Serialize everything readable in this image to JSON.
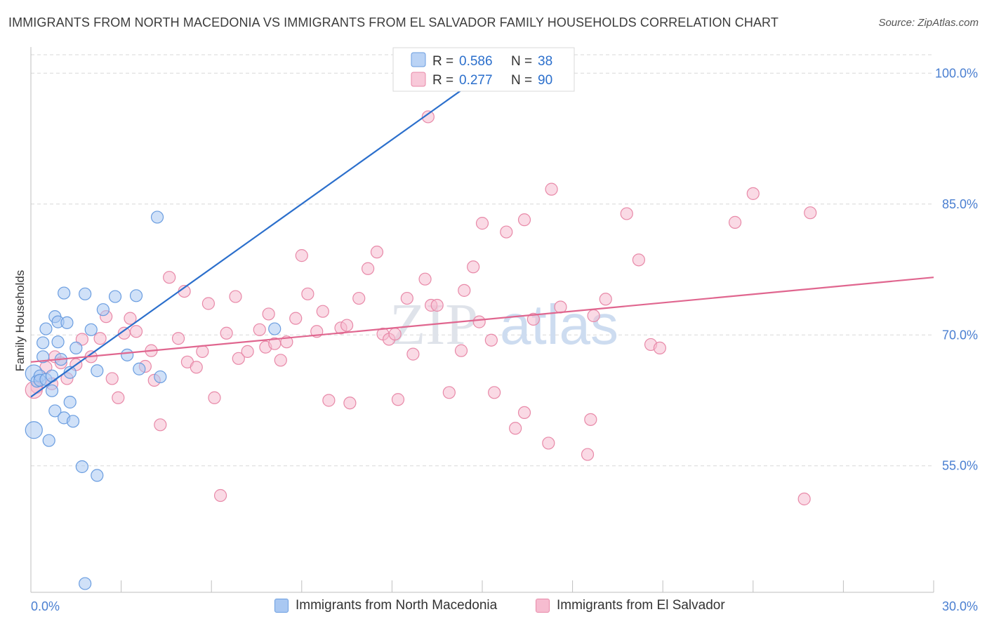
{
  "header": {
    "title": "IMMIGRANTS FROM NORTH MACEDONIA VS IMMIGRANTS FROM EL SALVADOR FAMILY HOUSEHOLDS CORRELATION CHART",
    "source": "Source: ZipAtlas.com"
  },
  "watermark": {
    "zip": "ZIP",
    "atlas": "atlas"
  },
  "stats_box": {
    "rows": [
      {
        "r_label": "R = ",
        "r_value": "0.586",
        "n_label": "N = ",
        "n_value": "38"
      },
      {
        "r_label": "R = ",
        "r_value": "0.277",
        "n_label": "N = ",
        "n_value": "90"
      }
    ]
  },
  "legend": {
    "items": [
      {
        "label": "Immigrants from North Macedonia"
      },
      {
        "label": "Immigrants from El Salvador"
      }
    ]
  },
  "colors": {
    "blue_fill": "#a9c8f2",
    "blue_stroke": "#6a9de0",
    "blue_line": "#2b6fcc",
    "pink_fill": "#f6bcd0",
    "pink_stroke": "#e889a8",
    "pink_line": "#e0668f",
    "axis_text": "#4a7fd1",
    "grid": "#d8d8d8"
  },
  "chart_data": {
    "type": "scatter",
    "title": "IMMIGRANTS FROM NORTH MACEDONIA VS IMMIGRANTS FROM EL SALVADOR FAMILY HOUSEHOLDS CORRELATION CHART",
    "xlabel": "",
    "ylabel": "Family Households",
    "xlim": [
      0,
      30
    ],
    "ylim": [
      40.5,
      103
    ],
    "x_tick_labels": [
      "0.0%",
      "30.0%"
    ],
    "y_ticks": [
      55,
      70,
      85,
      100
    ],
    "y_tick_labels": [
      "55.0%",
      "70.0%",
      "85.0%",
      "100.0%"
    ],
    "grid": true,
    "legend_position": "bottom",
    "series": [
      {
        "name": "Immigrants from North Macedonia",
        "r": 0.586,
        "n": 38,
        "trend": {
          "x": [
            0.0,
            15.1
          ],
          "y": [
            62.9,
            100.0
          ]
        },
        "points": [
          [
            0.1,
            59.1
          ],
          [
            0.1,
            65.6
          ],
          [
            0.2,
            64.7
          ],
          [
            0.3,
            65.3
          ],
          [
            0.3,
            64.8
          ],
          [
            0.4,
            69.1
          ],
          [
            0.4,
            67.5
          ],
          [
            0.5,
            64.9
          ],
          [
            0.5,
            70.7
          ],
          [
            0.6,
            57.9
          ],
          [
            0.7,
            63.6
          ],
          [
            0.7,
            65.3
          ],
          [
            0.8,
            61.3
          ],
          [
            0.8,
            72.1
          ],
          [
            0.9,
            69.2
          ],
          [
            0.9,
            71.5
          ],
          [
            1.0,
            67.2
          ],
          [
            1.1,
            74.8
          ],
          [
            1.1,
            60.5
          ],
          [
            1.2,
            71.4
          ],
          [
            1.3,
            65.7
          ],
          [
            1.3,
            62.3
          ],
          [
            1.4,
            60.1
          ],
          [
            1.5,
            68.5
          ],
          [
            1.7,
            54.9
          ],
          [
            1.8,
            74.7
          ],
          [
            1.8,
            41.5
          ],
          [
            2.0,
            70.6
          ],
          [
            2.2,
            65.9
          ],
          [
            2.2,
            53.9
          ],
          [
            2.4,
            72.9
          ],
          [
            2.8,
            74.4
          ],
          [
            3.2,
            67.7
          ],
          [
            3.5,
            74.5
          ],
          [
            3.6,
            66.1
          ],
          [
            4.2,
            83.5
          ],
          [
            4.3,
            65.2
          ],
          [
            8.1,
            70.7
          ]
        ]
      },
      {
        "name": "Immigrants from El Salvador",
        "r": 0.277,
        "n": 90,
        "trend": {
          "x": [
            0.0,
            30.0
          ],
          "y": [
            66.9,
            76.6
          ]
        },
        "points": [
          [
            0.2,
            64.0
          ],
          [
            0.5,
            66.3
          ],
          [
            0.7,
            64.4
          ],
          [
            0.8,
            67.5
          ],
          [
            1.0,
            66.8
          ],
          [
            1.2,
            65.0
          ],
          [
            1.5,
            66.6
          ],
          [
            1.7,
            69.5
          ],
          [
            2.0,
            67.5
          ],
          [
            2.3,
            69.6
          ],
          [
            2.5,
            72.1
          ],
          [
            2.7,
            65.0
          ],
          [
            2.9,
            62.8
          ],
          [
            3.1,
            70.2
          ],
          [
            3.3,
            71.9
          ],
          [
            3.5,
            70.4
          ],
          [
            3.8,
            66.4
          ],
          [
            4.0,
            68.2
          ],
          [
            4.1,
            64.8
          ],
          [
            4.3,
            59.7
          ],
          [
            4.6,
            76.6
          ],
          [
            4.9,
            69.6
          ],
          [
            5.1,
            75.0
          ],
          [
            5.2,
            66.9
          ],
          [
            5.5,
            66.3
          ],
          [
            5.7,
            68.1
          ],
          [
            5.9,
            73.6
          ],
          [
            6.1,
            62.8
          ],
          [
            6.3,
            51.6
          ],
          [
            6.5,
            70.2
          ],
          [
            6.8,
            74.4
          ],
          [
            6.9,
            67.3
          ],
          [
            7.2,
            68.1
          ],
          [
            7.6,
            70.6
          ],
          [
            7.8,
            68.6
          ],
          [
            7.9,
            72.4
          ],
          [
            8.1,
            69.0
          ],
          [
            8.3,
            67.1
          ],
          [
            8.5,
            69.2
          ],
          [
            8.8,
            71.9
          ],
          [
            9.0,
            79.1
          ],
          [
            9.2,
            74.7
          ],
          [
            9.5,
            70.4
          ],
          [
            9.7,
            72.7
          ],
          [
            9.9,
            62.5
          ],
          [
            10.3,
            70.8
          ],
          [
            10.5,
            71.1
          ],
          [
            10.6,
            62.2
          ],
          [
            10.9,
            74.2
          ],
          [
            11.2,
            77.6
          ],
          [
            11.5,
            79.5
          ],
          [
            11.7,
            70.1
          ],
          [
            11.9,
            69.5
          ],
          [
            12.1,
            70.1
          ],
          [
            12.2,
            62.6
          ],
          [
            12.5,
            74.2
          ],
          [
            12.7,
            67.8
          ],
          [
            13.1,
            76.4
          ],
          [
            13.3,
            73.4
          ],
          [
            13.5,
            73.4
          ],
          [
            13.2,
            95.0
          ],
          [
            13.9,
            63.4
          ],
          [
            14.3,
            68.2
          ],
          [
            14.4,
            75.1
          ],
          [
            14.7,
            77.8
          ],
          [
            14.9,
            71.5
          ],
          [
            15.0,
            82.8
          ],
          [
            15.3,
            69.4
          ],
          [
            15.4,
            63.4
          ],
          [
            15.8,
            81.8
          ],
          [
            16.1,
            59.3
          ],
          [
            16.7,
            71.8
          ],
          [
            16.4,
            83.2
          ],
          [
            16.4,
            61.1
          ],
          [
            17.2,
            57.6
          ],
          [
            17.3,
            86.7
          ],
          [
            17.6,
            73.2
          ],
          [
            18.5,
            56.3
          ],
          [
            18.7,
            72.2
          ],
          [
            18.6,
            60.3
          ],
          [
            19.1,
            74.1
          ],
          [
            19.8,
            83.9
          ],
          [
            20.2,
            78.6
          ],
          [
            20.6,
            68.9
          ],
          [
            20.9,
            68.5
          ],
          [
            23.4,
            82.9
          ],
          [
            24.0,
            86.2
          ],
          [
            25.7,
            51.2
          ],
          [
            25.9,
            84.0
          ],
          [
            0.1,
            63.7
          ]
        ]
      }
    ]
  }
}
